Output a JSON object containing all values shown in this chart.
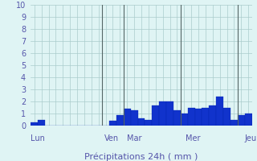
{
  "xlabel": "Précipitations 24h ( mm )",
  "ylim": [
    0,
    10
  ],
  "yticks": [
    0,
    1,
    2,
    3,
    4,
    5,
    6,
    7,
    8,
    9,
    10
  ],
  "background_color": "#dff4f4",
  "bar_color": "#1133cc",
  "bar_edge_color": "#0022aa",
  "grid_color": "#aacccc",
  "day_label_color": "#5555aa",
  "xlabel_color": "#5555aa",
  "vline_color": "#556666",
  "values": [
    0.3,
    0.5,
    0.0,
    0.0,
    0.0,
    0.0,
    0.0,
    0.0,
    0.0,
    0.0,
    0.0,
    0.4,
    0.9,
    1.4,
    1.3,
    0.6,
    0.5,
    1.7,
    2.0,
    2.0,
    1.3,
    1.0,
    1.5,
    1.4,
    1.5,
    1.7,
    2.4,
    1.5,
    0.5,
    0.9,
    1.0
  ],
  "day_labels": [
    "Lun",
    "Ven",
    "Mar",
    "Mer",
    "Jeu"
  ],
  "day_positions": [
    0,
    10,
    13,
    21,
    29
  ],
  "vline_positions": [
    10,
    13,
    21,
    29
  ],
  "n_bars": 31,
  "figsize": [
    3.2,
    2.0
  ],
  "dpi": 100
}
